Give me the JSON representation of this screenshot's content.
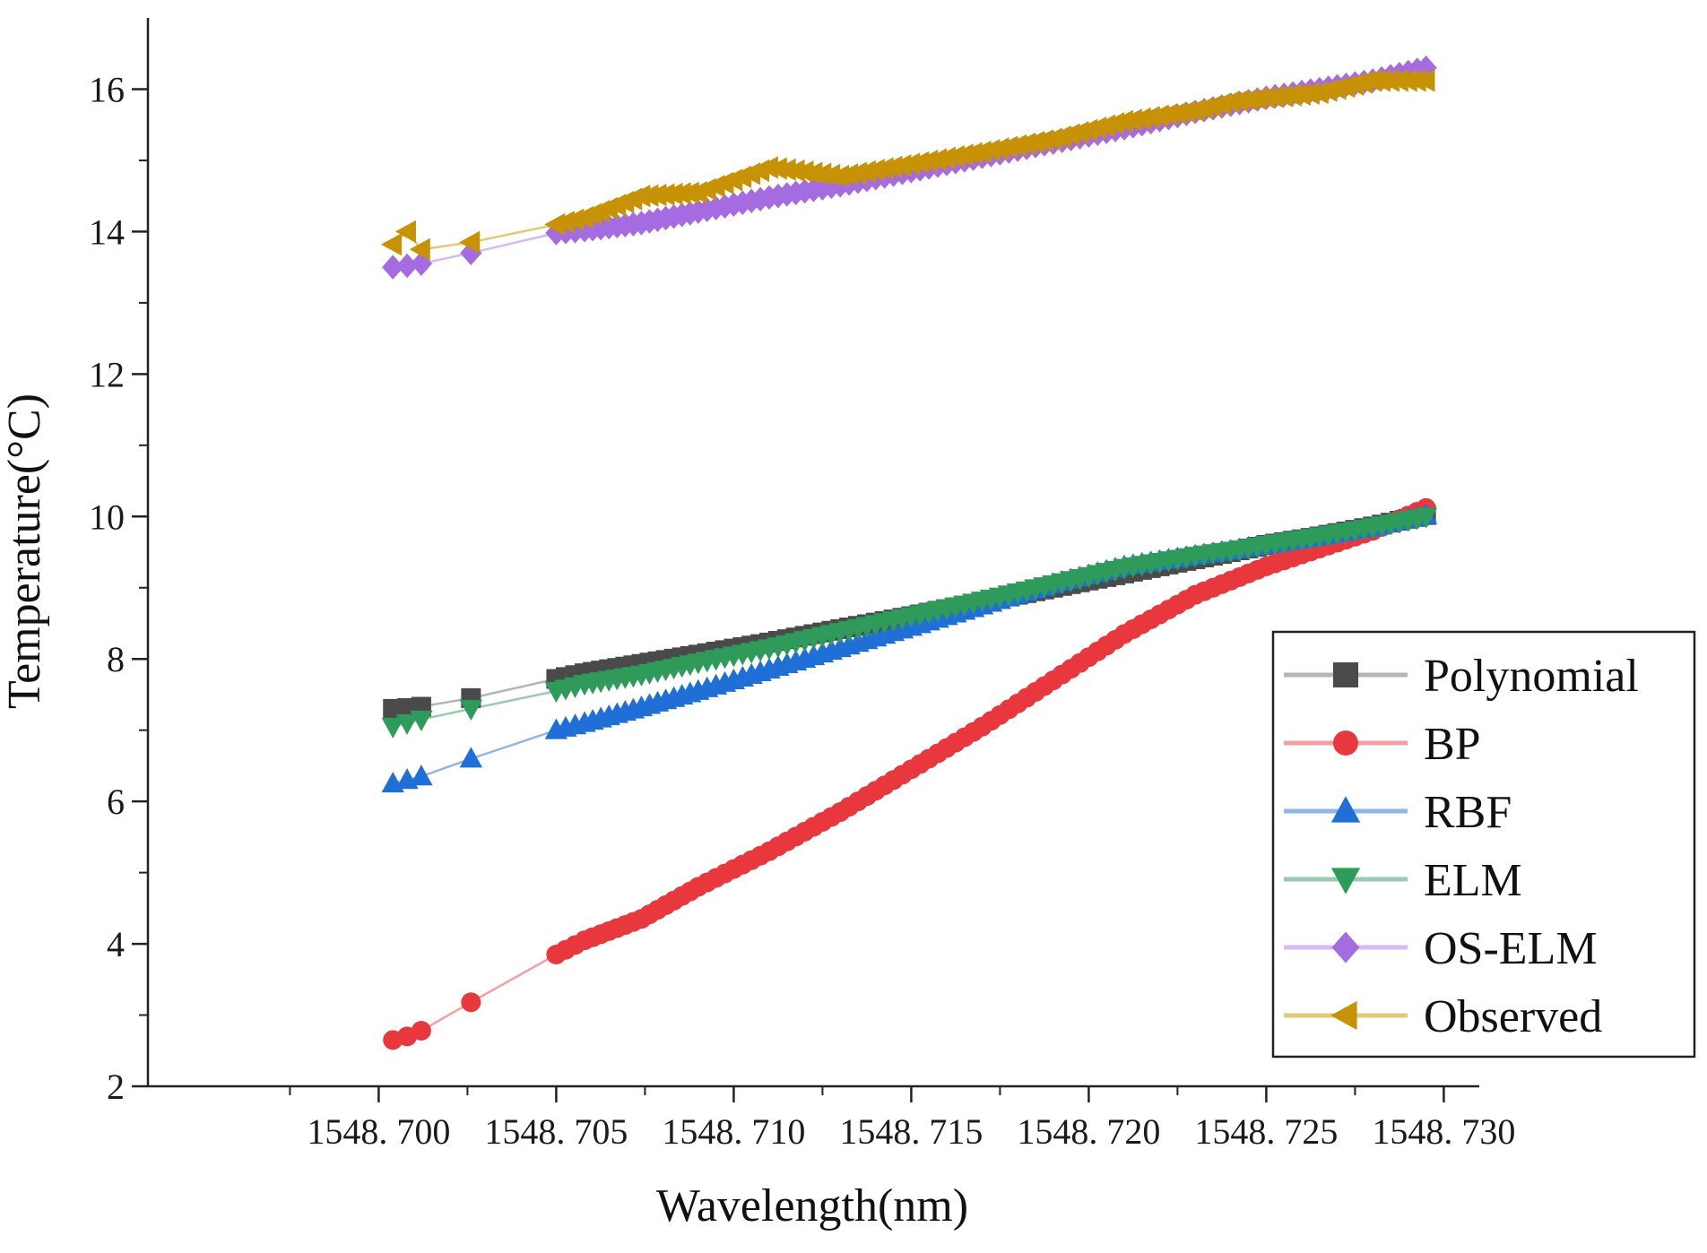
{
  "chart_data": {
    "type": "line",
    "title": "",
    "xlabel": "Wavelength(nm)",
    "ylabel": "Temperature(°C)",
    "xlim": [
      1548.6935,
      1548.731
    ],
    "ylim": [
      2,
      17
    ],
    "x_ticks": [
      1548.7,
      1548.705,
      1548.71,
      1548.715,
      1548.72,
      1548.725,
      1548.73
    ],
    "x_tick_labels": [
      "1548. 700",
      "1548. 705",
      "1548. 710",
      "1548. 715",
      "1548. 720",
      "1548. 725",
      "1548. 730"
    ],
    "y_ticks": [
      2,
      4,
      6,
      8,
      10,
      12,
      14,
      16
    ],
    "y_tick_labels": [
      "2",
      "4",
      "6",
      "8",
      "10",
      "12",
      "14",
      "16"
    ],
    "grid": false,
    "legend_position": "right",
    "series": [
      {
        "name": "Polynomial",
        "color": "#4a4a4a",
        "line_color": "#b5b5b5",
        "marker": "square",
        "points": [
          [
            1548.7004,
            7.3
          ],
          [
            1548.7008,
            7.31
          ],
          [
            1548.7012,
            7.33
          ],
          [
            1548.7026,
            7.45
          ],
          [
            1548.705,
            7.72
          ],
          [
            1548.7058,
            7.8
          ],
          [
            1548.7074,
            7.93
          ],
          [
            1548.709,
            8.06
          ],
          [
            1548.711,
            8.23
          ],
          [
            1548.713,
            8.42
          ],
          [
            1548.715,
            8.6
          ],
          [
            1548.717,
            8.8
          ],
          [
            1548.719,
            9.0
          ],
          [
            1548.721,
            9.2
          ],
          [
            1548.723,
            9.4
          ],
          [
            1548.724,
            9.5
          ],
          [
            1548.725,
            9.6
          ],
          [
            1548.7265,
            9.72
          ],
          [
            1548.728,
            9.86
          ],
          [
            1548.7295,
            10.02
          ]
        ]
      },
      {
        "name": "BP",
        "color": "#e8383d",
        "line_color": "#f3a0a2",
        "marker": "circle",
        "points": [
          [
            1548.7004,
            2.65
          ],
          [
            1548.7008,
            2.7
          ],
          [
            1548.7012,
            2.78
          ],
          [
            1548.7026,
            3.18
          ],
          [
            1548.705,
            3.85
          ],
          [
            1548.7058,
            4.05
          ],
          [
            1548.7074,
            4.35
          ],
          [
            1548.709,
            4.8
          ],
          [
            1548.711,
            5.3
          ],
          [
            1548.713,
            5.85
          ],
          [
            1548.715,
            6.45
          ],
          [
            1548.717,
            7.05
          ],
          [
            1548.719,
            7.7
          ],
          [
            1548.721,
            8.35
          ],
          [
            1548.723,
            8.9
          ],
          [
            1548.724,
            9.1
          ],
          [
            1548.725,
            9.3
          ],
          [
            1548.7265,
            9.55
          ],
          [
            1548.728,
            9.8
          ],
          [
            1548.7295,
            10.12
          ]
        ]
      },
      {
        "name": "RBF",
        "color": "#1f6fd6",
        "line_color": "#8fb5ea",
        "marker": "triangle-up",
        "points": [
          [
            1548.7004,
            6.25
          ],
          [
            1548.7008,
            6.3
          ],
          [
            1548.7012,
            6.35
          ],
          [
            1548.7026,
            6.6
          ],
          [
            1548.705,
            7.0
          ],
          [
            1548.7058,
            7.1
          ],
          [
            1548.7074,
            7.32
          ],
          [
            1548.709,
            7.55
          ],
          [
            1548.711,
            7.85
          ],
          [
            1548.713,
            8.15
          ],
          [
            1548.715,
            8.45
          ],
          [
            1548.717,
            8.75
          ],
          [
            1548.719,
            9.05
          ],
          [
            1548.721,
            9.3
          ],
          [
            1548.723,
            9.45
          ],
          [
            1548.724,
            9.52
          ],
          [
            1548.725,
            9.6
          ],
          [
            1548.7265,
            9.72
          ],
          [
            1548.728,
            9.85
          ],
          [
            1548.7295,
            10.02
          ]
        ]
      },
      {
        "name": "ELM",
        "color": "#2e9b5b",
        "line_color": "#97cdad",
        "marker": "triangle-down",
        "points": [
          [
            1548.7004,
            7.05
          ],
          [
            1548.7008,
            7.1
          ],
          [
            1548.7012,
            7.15
          ],
          [
            1548.7026,
            7.3
          ],
          [
            1548.705,
            7.55
          ],
          [
            1548.7058,
            7.65
          ],
          [
            1548.7074,
            7.78
          ],
          [
            1548.709,
            7.95
          ],
          [
            1548.711,
            8.15
          ],
          [
            1548.713,
            8.38
          ],
          [
            1548.715,
            8.6
          ],
          [
            1548.717,
            8.82
          ],
          [
            1548.719,
            9.05
          ],
          [
            1548.721,
            9.28
          ],
          [
            1548.723,
            9.45
          ],
          [
            1548.724,
            9.52
          ],
          [
            1548.725,
            9.6
          ],
          [
            1548.7265,
            9.72
          ],
          [
            1548.728,
            9.85
          ],
          [
            1548.7295,
            10.0
          ]
        ]
      },
      {
        "name": "OS-ELM",
        "color": "#a56be0",
        "line_color": "#d6baf2",
        "marker": "diamond",
        "points": [
          [
            1548.7004,
            13.5
          ],
          [
            1548.7008,
            13.52
          ],
          [
            1548.7012,
            13.55
          ],
          [
            1548.7026,
            13.7
          ],
          [
            1548.705,
            13.98
          ],
          [
            1548.7058,
            14.02
          ],
          [
            1548.7074,
            14.12
          ],
          [
            1548.709,
            14.28
          ],
          [
            1548.711,
            14.48
          ],
          [
            1548.713,
            14.65
          ],
          [
            1548.715,
            14.85
          ],
          [
            1548.717,
            15.05
          ],
          [
            1548.719,
            15.25
          ],
          [
            1548.721,
            15.45
          ],
          [
            1548.723,
            15.68
          ],
          [
            1548.724,
            15.78
          ],
          [
            1548.725,
            15.88
          ],
          [
            1548.7265,
            16.0
          ],
          [
            1548.728,
            16.12
          ],
          [
            1548.7295,
            16.3
          ]
        ]
      },
      {
        "name": "Observed",
        "color": "#c89206",
        "line_color": "#e3c97a",
        "marker": "triangle-left",
        "points": [
          [
            1548.7004,
            13.82
          ],
          [
            1548.7008,
            14.0
          ],
          [
            1548.7012,
            13.75
          ],
          [
            1548.7026,
            13.85
          ],
          [
            1548.705,
            14.1
          ],
          [
            1548.7058,
            14.2
          ],
          [
            1548.7074,
            14.5
          ],
          [
            1548.709,
            14.55
          ],
          [
            1548.711,
            14.9
          ],
          [
            1548.713,
            14.78
          ],
          [
            1548.715,
            14.95
          ],
          [
            1548.717,
            15.12
          ],
          [
            1548.719,
            15.3
          ],
          [
            1548.721,
            15.55
          ],
          [
            1548.723,
            15.7
          ],
          [
            1548.724,
            15.82
          ],
          [
            1548.725,
            15.88
          ],
          [
            1548.7265,
            15.95
          ],
          [
            1548.728,
            16.12
          ],
          [
            1548.7295,
            16.12
          ]
        ]
      }
    ]
  }
}
